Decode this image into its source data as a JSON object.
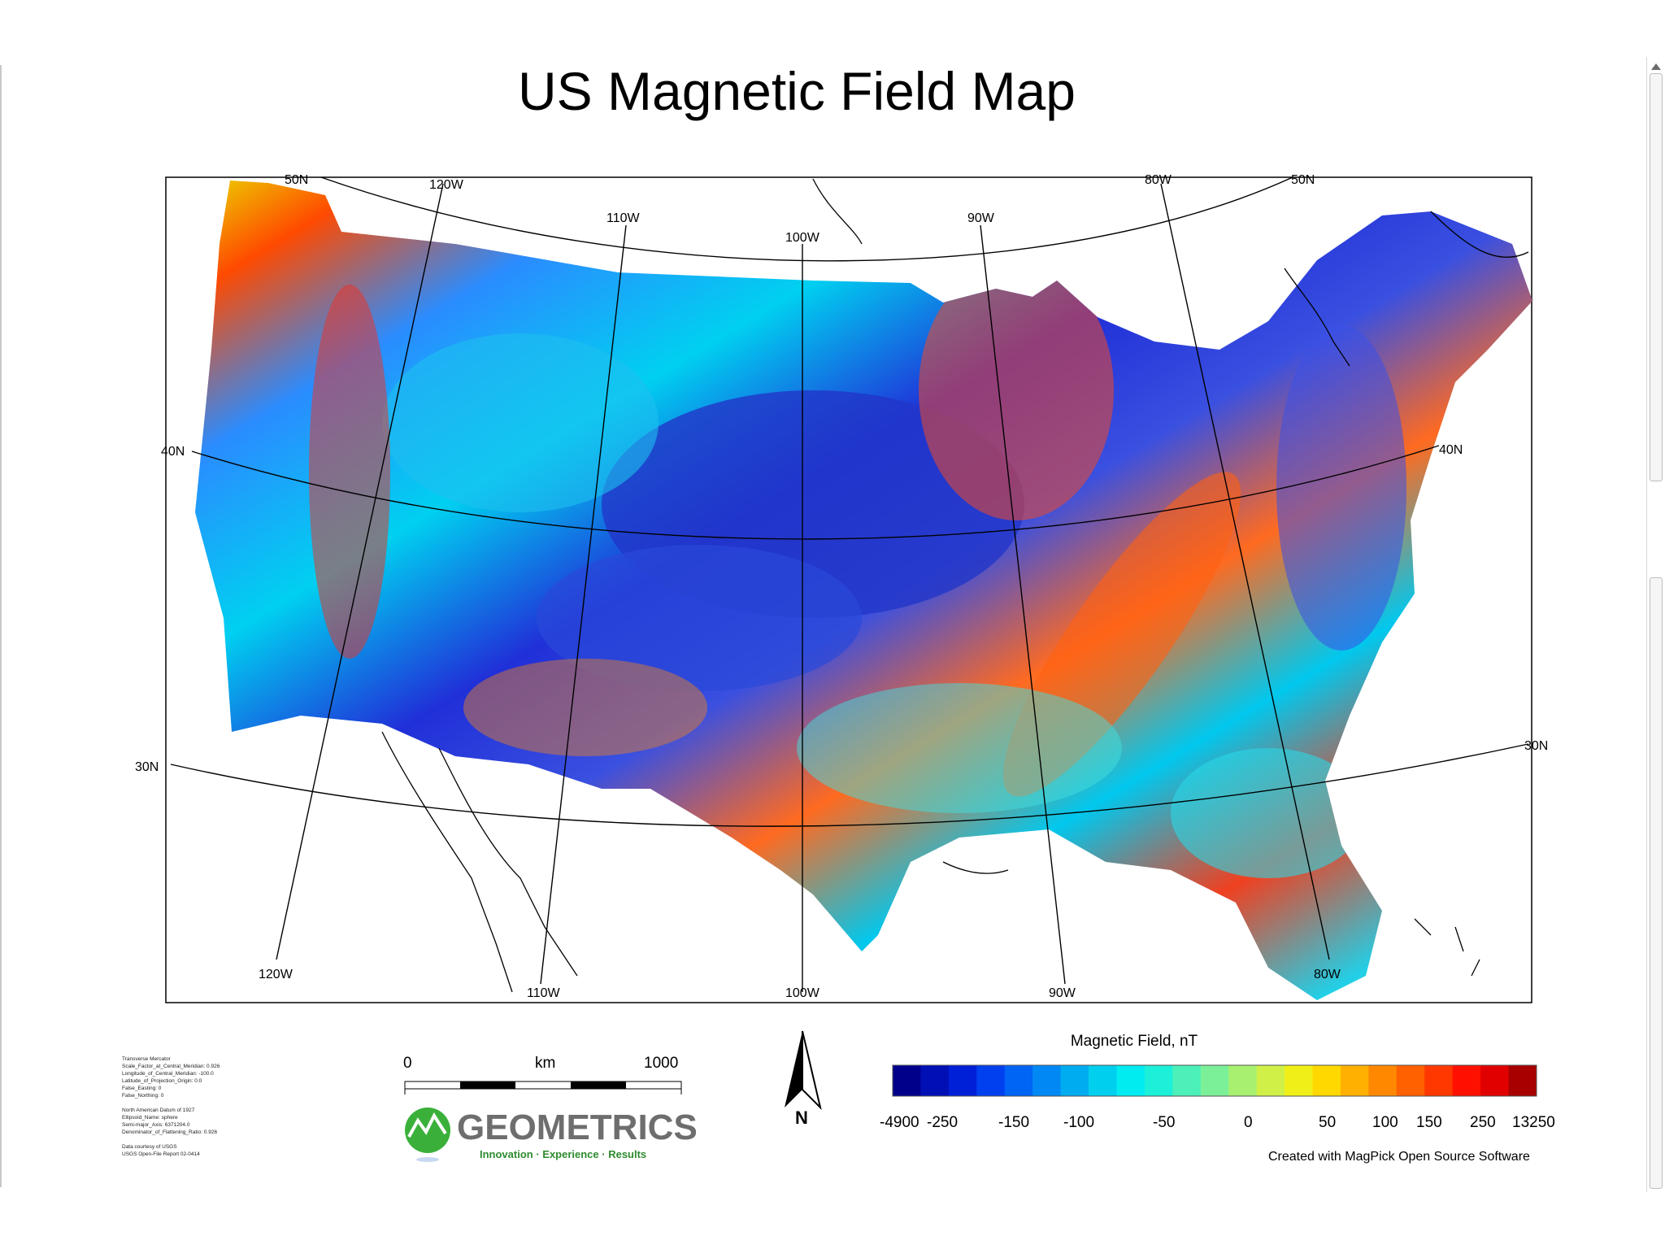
{
  "title": "US Magnetic Field Map",
  "graticule_labels": {
    "top": [
      "50N",
      "120W",
      "110W",
      "100W",
      "90W",
      "80W",
      "50N"
    ],
    "left": [
      "40N",
      "30N"
    ],
    "right": [
      "40N",
      "30N"
    ],
    "bottom": [
      "120W",
      "110W",
      "100W",
      "90W",
      "80W"
    ]
  },
  "scale_bar": {
    "start": "0",
    "unit": "km",
    "end": "1000"
  },
  "north_arrow": "N",
  "legend": {
    "title": "Magnetic Field, nT",
    "tick_labels": [
      "-4900",
      "-250",
      "-150",
      "-100",
      "-50",
      "0",
      "50",
      "100",
      "150",
      "250",
      "13250"
    ],
    "colors": [
      "#00008b",
      "#0010b5",
      "#0020d8",
      "#0040ef",
      "#0064f5",
      "#0088f5",
      "#00acf0",
      "#00cfee",
      "#00ecf0",
      "#1cf0d8",
      "#4cf0b8",
      "#7cf098",
      "#a8f070",
      "#d0f048",
      "#f0f018",
      "#ffd800",
      "#ffb000",
      "#ff8800",
      "#ff6000",
      "#ff3800",
      "#ff1000",
      "#e00000",
      "#a80000"
    ]
  },
  "credit": "Created with MagPick Open Source Software",
  "projection_notes": [
    "Transverse Mercator",
    "Scale_Factor_at_Central_Meridian: 0.926",
    "Longitude_of_Central_Meridian: -100.0",
    "Latitude_of_Projection_Origin: 0.0",
    "False_Easting: 0",
    "False_Northing: 0",
    "",
    "North American Datum of 1927",
    "Ellipsoid_Name: sphere",
    "Semi-major_Axis: 6371204.0",
    "Denominator_of_Flattening_Ratio: 0.926",
    "",
    "Data courtesy of USGS",
    "USGS Open-File Report 02-0414"
  ],
  "logo": {
    "name": "GEOMETRICS",
    "tagline": "Innovation · Experience · Results"
  }
}
